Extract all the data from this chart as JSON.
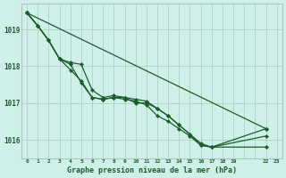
{
  "background_color": "#cff0e8",
  "grid_color": "#aac8be",
  "line_color": "#1a5c2a",
  "marker_color": "#1a5c2a",
  "title": "Graphe pression niveau de la mer (hPa)",
  "title_color": "#1a5c2a",
  "xlim": [
    -0.5,
    23.5
  ],
  "ylim": [
    1015.5,
    1019.7
  ],
  "xtick_positions": [
    0,
    1,
    2,
    3,
    4,
    5,
    6,
    7,
    8,
    9,
    10,
    11,
    12,
    13,
    14,
    15,
    16,
    17,
    18,
    19,
    22,
    23
  ],
  "xtick_labels": [
    "0",
    "1",
    "2",
    "3",
    "4",
    "5",
    "6",
    "7",
    "8",
    "9",
    "10",
    "11",
    "12",
    "13",
    "14",
    "15",
    "16",
    "17",
    "18",
    "19",
    "22",
    "23"
  ],
  "yticks": [
    1016,
    1017,
    1018,
    1019
  ],
  "series": [
    {
      "x": [
        0,
        1,
        2,
        3,
        4,
        5,
        6,
        7,
        8,
        9,
        10,
        11,
        12,
        13,
        14,
        15,
        16,
        17,
        22
      ],
      "y": [
        1019.45,
        1019.1,
        1018.7,
        1018.2,
        1018.05,
        1017.55,
        1017.15,
        1017.1,
        1017.15,
        1017.15,
        1017.0,
        1017.0,
        1016.85,
        1016.65,
        1016.4,
        1016.15,
        1015.85,
        1015.8,
        1015.8
      ]
    },
    {
      "x": [
        0,
        1,
        2,
        3,
        4,
        5,
        6,
        7,
        8,
        9,
        10,
        11,
        12,
        13,
        14,
        15,
        16,
        17,
        22
      ],
      "y": [
        1019.45,
        1019.1,
        1018.7,
        1018.2,
        1017.9,
        1017.6,
        1017.15,
        1017.1,
        1017.15,
        1017.1,
        1017.05,
        1016.95,
        1016.65,
        1016.5,
        1016.3,
        1016.1,
        1015.85,
        1015.8,
        1016.3
      ]
    },
    {
      "x": [
        0,
        1,
        2,
        3,
        4,
        5,
        6,
        7,
        8,
        9,
        10,
        11,
        12,
        13,
        14,
        15,
        16,
        17,
        22
      ],
      "y": [
        1019.45,
        1019.1,
        1018.7,
        1018.2,
        1018.1,
        1018.05,
        1017.35,
        1017.15,
        1017.2,
        1017.15,
        1017.1,
        1017.05,
        1016.85,
        1016.65,
        1016.4,
        1016.15,
        1015.9,
        1015.8,
        1016.1
      ]
    },
    {
      "x": [
        0,
        22
      ],
      "y": [
        1019.45,
        1016.3
      ]
    }
  ]
}
